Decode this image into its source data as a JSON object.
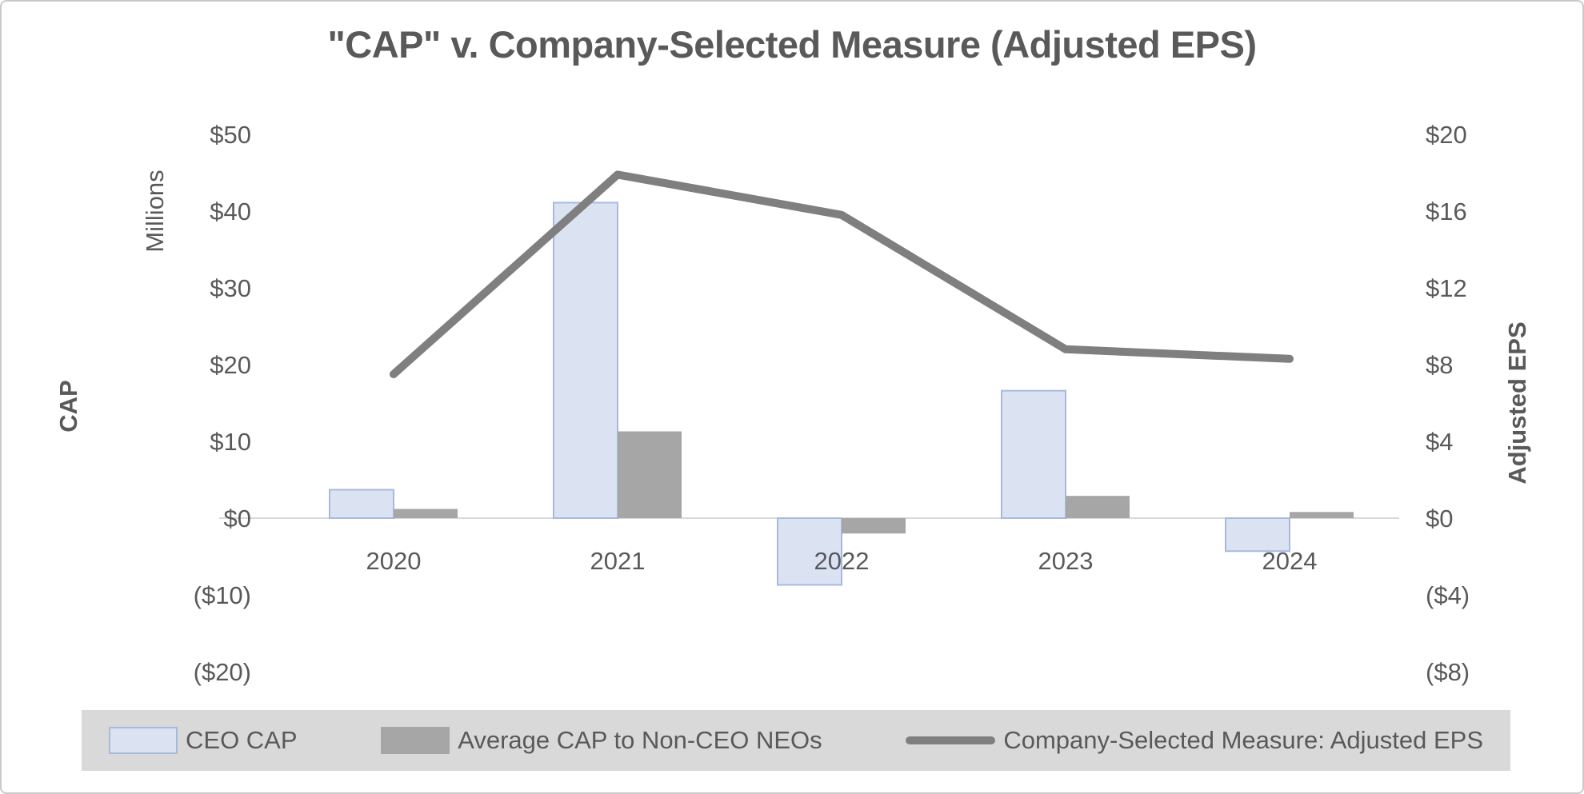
{
  "chart_data": {
    "type": "combo-bar-line",
    "title": "\"CAP\" v. Company-Selected Measure (Adjusted EPS)",
    "categories": [
      "2020",
      "2021",
      "2022",
      "2023",
      "2024"
    ],
    "series": [
      {
        "name": "CEO CAP",
        "type": "bar",
        "axis": "left",
        "values": [
          3.7,
          41.1,
          -8.7,
          16.6,
          -4.3
        ],
        "fill": "#dbe3f3",
        "border": "#a7badd"
      },
      {
        "name": "Average CAP to Non-CEO NEOs",
        "type": "bar",
        "axis": "left",
        "values": [
          1.2,
          11.3,
          -2,
          2.9,
          0.8
        ],
        "fill": "#a6a6a6"
      },
      {
        "name": "Company-Selected Measure: Adjusted EPS",
        "type": "line",
        "axis": "right",
        "values": [
          7.5,
          17.9,
          15.8,
          8.8,
          8.3
        ],
        "color": "#7f7f7f",
        "stroke_width": 10
      }
    ],
    "left_axis": {
      "title": "CAP",
      "units_label": "Millions",
      "ticks": [
        "$50",
        "$40",
        "$30",
        "$20",
        "$10",
        "$0",
        "($10)",
        "($20)"
      ],
      "tick_values": [
        50,
        40,
        30,
        20,
        10,
        0,
        -10,
        -20
      ],
      "range": [
        -20,
        50
      ],
      "grid": false
    },
    "right_axis": {
      "title": "Adjusted EPS",
      "ticks": [
        "$20",
        "$16",
        "$12",
        "$8",
        "$4",
        "$0",
        "($4)",
        "($8)"
      ],
      "tick_values": [
        20,
        16,
        12,
        8,
        4,
        0,
        -4,
        -8
      ],
      "range": [
        -8,
        20
      ],
      "grid": false
    },
    "x_axis": {
      "labels": [
        "2020",
        "2021",
        "2022",
        "2023",
        "2024"
      ]
    },
    "legend": {
      "position": "bottom",
      "background": "#d9d9d9",
      "items": [
        "CEO CAP",
        "Average CAP to Non-CEO NEOs",
        "Company-Selected Measure: Adjusted EPS"
      ]
    },
    "colors": {
      "text": "#595959",
      "axis_line": "#d9d9d9"
    }
  }
}
